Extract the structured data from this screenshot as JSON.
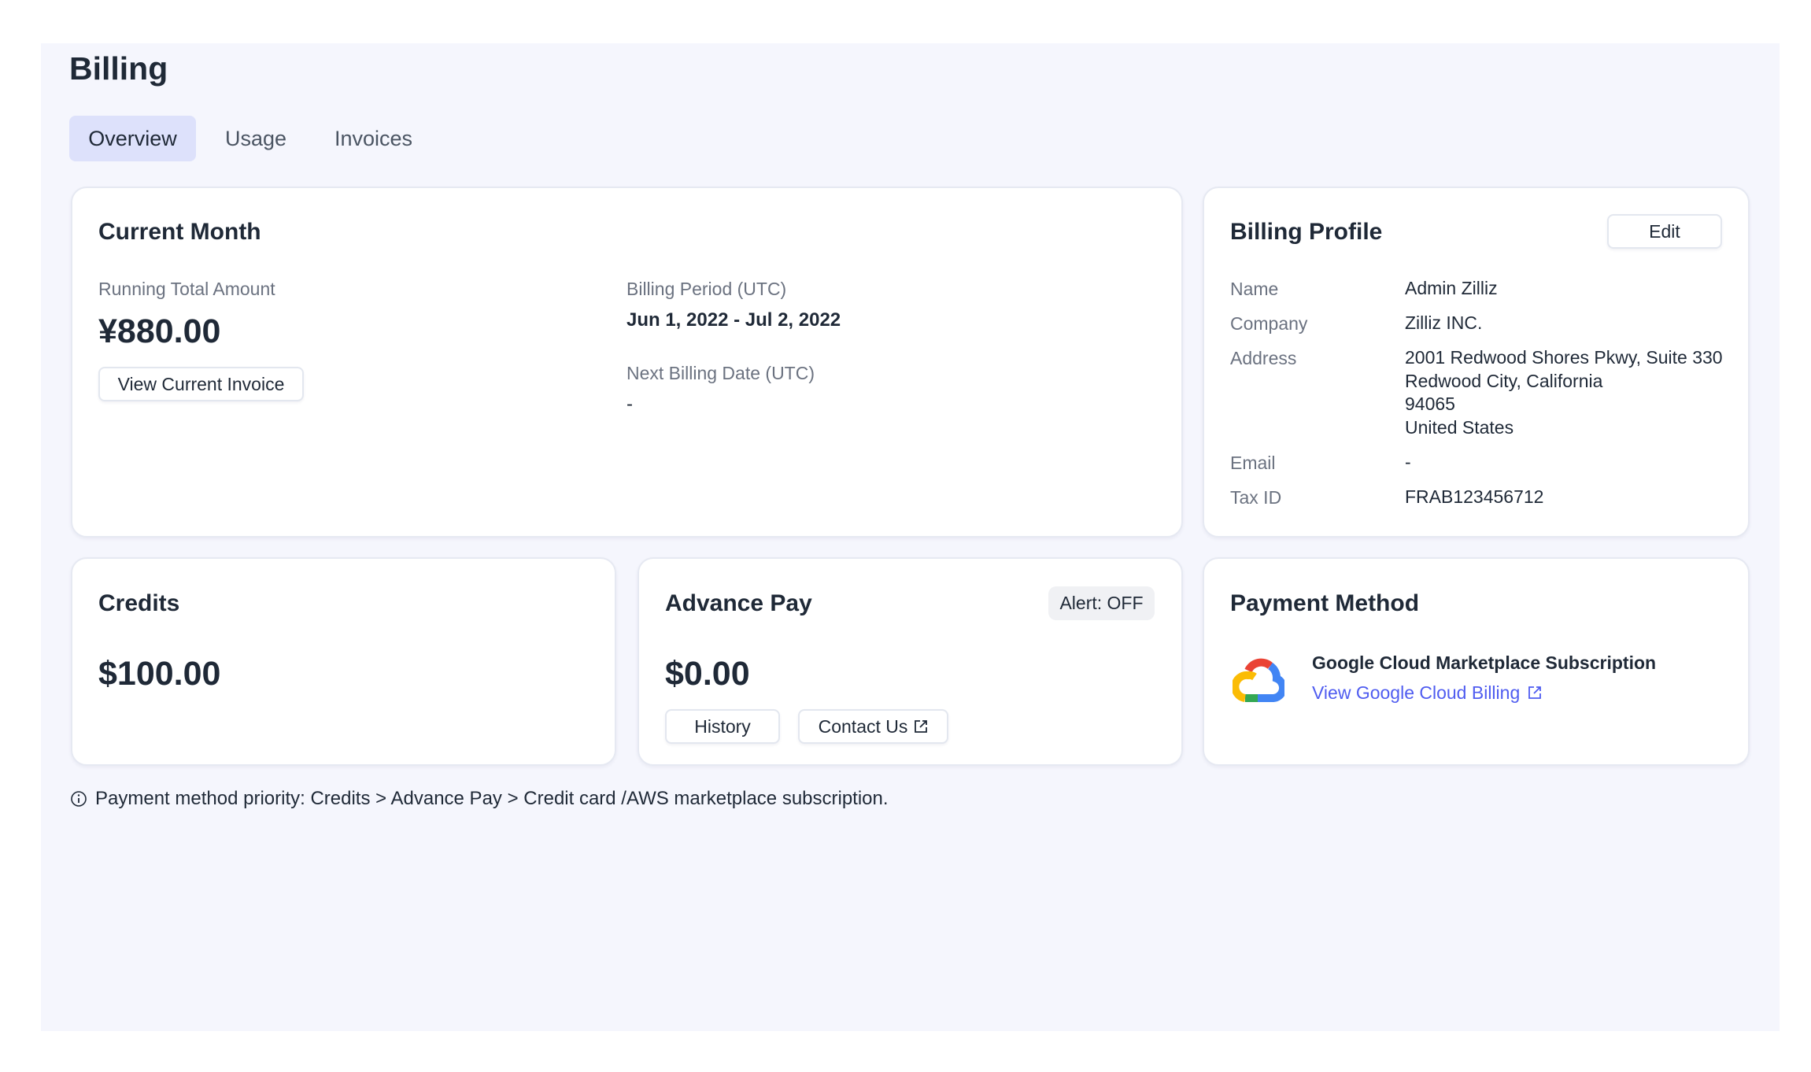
{
  "page": {
    "title": "Billing"
  },
  "tabs": [
    {
      "label": "Overview",
      "active": true
    },
    {
      "label": "Usage"
    },
    {
      "label": "Invoices"
    }
  ],
  "current_month": {
    "title": "Current Month",
    "running_total_label": "Running Total Amount",
    "running_total": "¥880.00",
    "view_invoice_label": "View Current Invoice",
    "billing_period_label": "Billing Period (UTC)",
    "billing_period": "Jun 1, 2022 - Jul 2, 2022",
    "next_billing_label": "Next Billing Date (UTC)",
    "next_billing": "-"
  },
  "billing_profile": {
    "title": "Billing Profile",
    "edit_label": "Edit",
    "name_label": "Name",
    "name": "Admin Zilliz",
    "company_label": "Company",
    "company": "Zilliz INC.",
    "address_label": "Address",
    "address_lines": [
      "2001 Redwood Shores Pkwy, Suite 330",
      "Redwood City, California",
      "94065",
      "United States"
    ],
    "email_label": "Email",
    "email": "-",
    "tax_label": "Tax ID",
    "tax_id": "FRAB123456712"
  },
  "credits": {
    "title": "Credits",
    "amount": "$100.00"
  },
  "advance_pay": {
    "title": "Advance Pay",
    "alert_label": "Alert: OFF",
    "amount": "$0.00",
    "history_label": "History",
    "contact_label": "Contact Us",
    "contact_icon": "external-link-icon"
  },
  "payment_method": {
    "title": "Payment Method",
    "logo": "google-cloud-logo",
    "name": "Google Cloud Marketplace Subscription",
    "link_label": "View Google Cloud Billing",
    "link_color": "#4f5cf0"
  },
  "footnote": {
    "icon": "info-icon",
    "text": "Payment method priority: Credits > Advance Pay > Credit card /AWS marketplace subscription."
  }
}
